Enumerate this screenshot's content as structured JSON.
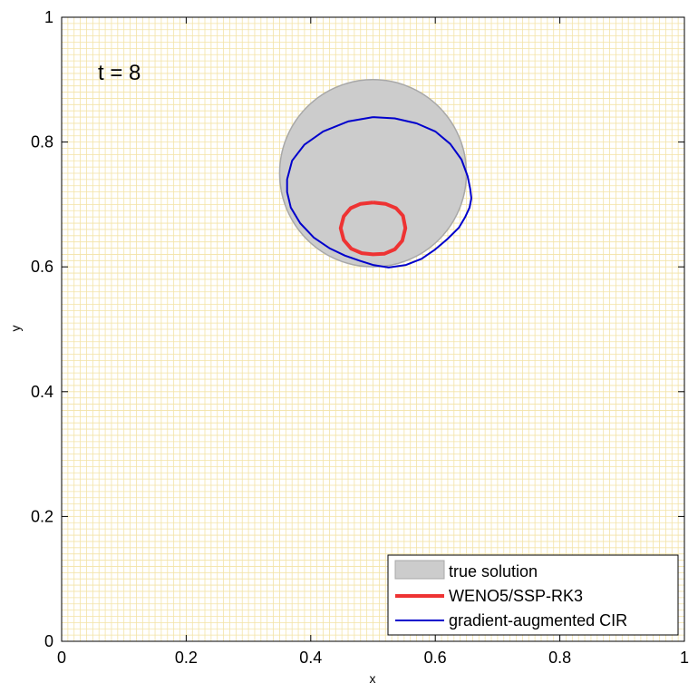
{
  "chart_data": {
    "type": "scatter",
    "annotation": "t = 8",
    "xlabel": "x",
    "ylabel": "y",
    "xlim": [
      0,
      1
    ],
    "ylim": [
      0,
      1
    ],
    "x_ticks": [
      "0",
      "0.2",
      "0.4",
      "0.6",
      "0.8",
      "1"
    ],
    "y_ticks": [
      "0",
      "0.2",
      "0.4",
      "0.6",
      "0.8",
      "1"
    ],
    "grid": true,
    "grid_spacing": 0.01,
    "legend_position": "bottom-right",
    "colors": {
      "grid": "#f3e3a6",
      "true_solution_fill": "#cccccc",
      "true_solution_edge": "#a8a8a8",
      "weno": "#ee3333",
      "cir": "#0000cc"
    },
    "series": [
      {
        "name": "true solution",
        "kind": "disk",
        "center": [
          0.5,
          0.75
        ],
        "radius": 0.15
      },
      {
        "name": "WENO5/SSP-RK3",
        "kind": "closed-curve",
        "points": [
          [
            0.5,
            0.703
          ],
          [
            0.52,
            0.701
          ],
          [
            0.537,
            0.694
          ],
          [
            0.548,
            0.682
          ],
          [
            0.552,
            0.662
          ],
          [
            0.547,
            0.642
          ],
          [
            0.535,
            0.628
          ],
          [
            0.518,
            0.621
          ],
          [
            0.5,
            0.62
          ],
          [
            0.482,
            0.622
          ],
          [
            0.465,
            0.629
          ],
          [
            0.453,
            0.643
          ],
          [
            0.448,
            0.662
          ],
          [
            0.453,
            0.681
          ],
          [
            0.464,
            0.694
          ],
          [
            0.48,
            0.701
          ],
          [
            0.5,
            0.703
          ]
        ]
      },
      {
        "name": "gradient-augmented CIR",
        "kind": "closed-curve",
        "points": [
          [
            0.5,
            0.84
          ],
          [
            0.535,
            0.838
          ],
          [
            0.57,
            0.83
          ],
          [
            0.6,
            0.817
          ],
          [
            0.624,
            0.797
          ],
          [
            0.642,
            0.772
          ],
          [
            0.652,
            0.745
          ],
          [
            0.656,
            0.725
          ],
          [
            0.658,
            0.71
          ],
          [
            0.655,
            0.695
          ],
          [
            0.648,
            0.68
          ],
          [
            0.638,
            0.663
          ],
          [
            0.62,
            0.645
          ],
          [
            0.6,
            0.628
          ],
          [
            0.578,
            0.613
          ],
          [
            0.553,
            0.603
          ],
          [
            0.525,
            0.599
          ],
          [
            0.5,
            0.603
          ],
          [
            0.478,
            0.61
          ],
          [
            0.455,
            0.618
          ],
          [
            0.43,
            0.63
          ],
          [
            0.405,
            0.647
          ],
          [
            0.383,
            0.67
          ],
          [
            0.368,
            0.695
          ],
          [
            0.362,
            0.72
          ],
          [
            0.362,
            0.74
          ],
          [
            0.37,
            0.77
          ],
          [
            0.39,
            0.796
          ],
          [
            0.42,
            0.817
          ],
          [
            0.46,
            0.833
          ],
          [
            0.5,
            0.84
          ]
        ]
      }
    ]
  }
}
